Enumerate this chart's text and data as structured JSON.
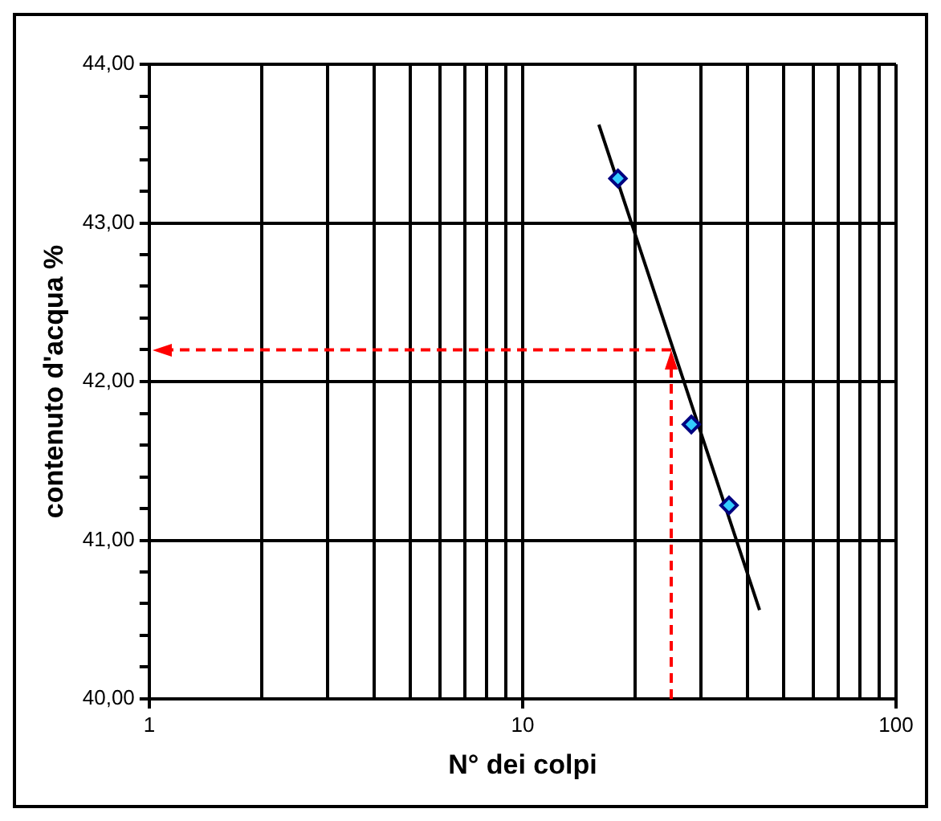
{
  "chart_data": {
    "type": "scatter",
    "xlabel": "N° dei colpi",
    "ylabel": "contenuto d'acqua %",
    "log": "x",
    "grid": true,
    "legend": false,
    "xlim": [
      1,
      100
    ],
    "xticks": [
      1,
      {
        "value": 2,
        "label": null
      },
      {
        "value": 3,
        "label": null
      },
      {
        "value": 4,
        "label": null
      },
      {
        "value": 5,
        "label": null
      },
      {
        "value": 6,
        "label": null
      },
      {
        "value": 7,
        "label": null
      },
      {
        "value": 8,
        "label": null
      },
      {
        "value": 9,
        "label": null
      },
      10,
      {
        "value": 20,
        "label": null
      },
      {
        "value": 30,
        "label": null
      },
      {
        "value": 40,
        "label": null
      },
      {
        "value": 50,
        "label": null
      },
      {
        "value": 60,
        "label": null
      },
      {
        "value": 70,
        "label": null
      },
      {
        "value": 80,
        "label": null
      },
      {
        "value": 90,
        "label": null
      },
      100
    ],
    "ylim": [
      40,
      44
    ],
    "yticks": [
      {
        "value": 40,
        "label": "40,00"
      },
      {
        "value": 40.2,
        "label": null
      },
      {
        "value": 40.4,
        "label": null
      },
      {
        "value": 40.6,
        "label": null
      },
      {
        "value": 40.8,
        "label": null
      },
      {
        "value": 41,
        "label": "41,00"
      },
      {
        "value": 41.2,
        "label": null
      },
      {
        "value": 41.4,
        "label": null
      },
      {
        "value": 41.6,
        "label": null
      },
      {
        "value": 41.8,
        "label": null
      },
      {
        "value": 42,
        "label": "42,00"
      },
      {
        "value": 42.2,
        "label": null
      },
      {
        "value": 42.4,
        "label": null
      },
      {
        "value": 42.6,
        "label": null
      },
      {
        "value": 42.8,
        "label": null
      },
      {
        "value": 43,
        "label": "43,00"
      },
      {
        "value": 43.2,
        "label": null
      },
      {
        "value": 43.4,
        "label": null
      },
      {
        "value": 43.6,
        "label": null
      },
      {
        "value": 43.8,
        "label": null
      },
      {
        "value": 44,
        "label": "44,00"
      }
    ],
    "series": [
      {
        "color": "#33ccff",
        "marker": "diamond",
        "x": [
          18,
          28.3,
          35.7
        ],
        "values": [
          43.28,
          41.73,
          41.22
        ]
      },
      {
        "type": "line",
        "color": "#000000",
        "x": [
          16,
          43.1
        ],
        "values": [
          43.62,
          40.56
        ]
      }
    ],
    "ref_lines": [
      {
        "axis": "x",
        "value": 25,
        "color": "#ff0000",
        "line_style": "dashed"
      },
      {
        "axis": "y",
        "value": 42.2,
        "color": "#ff0000",
        "line_style": "dashed"
      }
    ]
  }
}
